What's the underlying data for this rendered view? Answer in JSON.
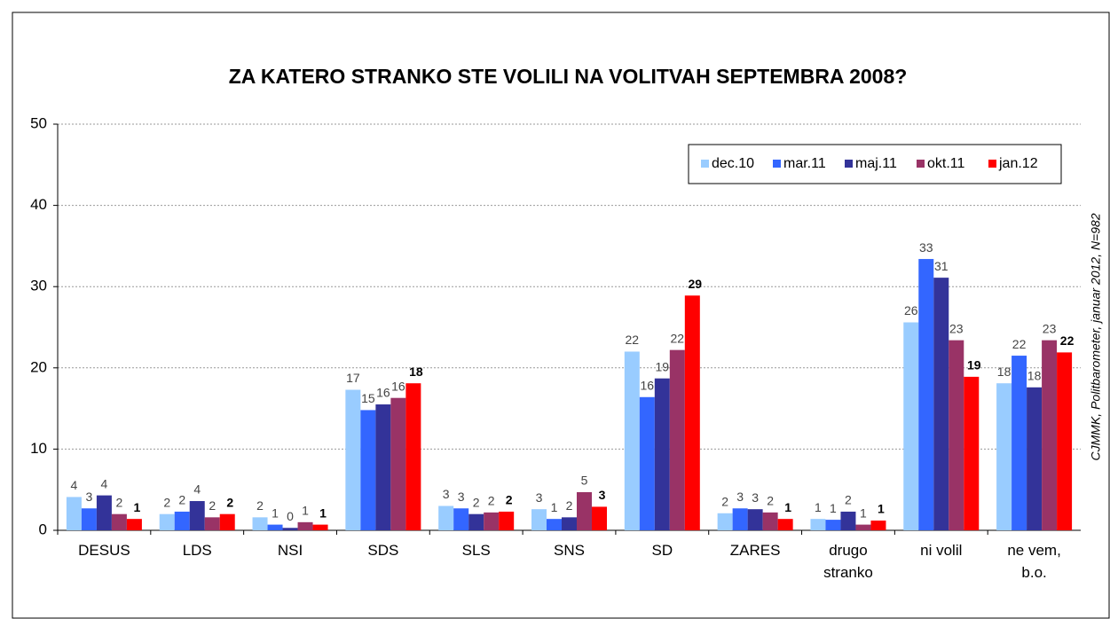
{
  "chart_data": {
    "type": "bar",
    "title": "ZA KATERO STRANKO STE VOLILI NA VOLITVAH SEPTEMBRA 2008?",
    "source": "CJMMK, Politbarometer, januar 2012, N=982",
    "categories": [
      "DESUS",
      "LDS",
      "NSI",
      "SDS",
      "SLS",
      "SNS",
      "SD",
      "ZARES",
      "drugo\nstranko",
      "ni volil",
      "ne vem,\nb.o."
    ],
    "ylim": [
      0,
      50
    ],
    "yticks": [
      0,
      10,
      20,
      30,
      40,
      50
    ],
    "grid": true,
    "legend": "top-right",
    "series": [
      {
        "name": "dec.10",
        "color": "#99ccff",
        "values": [
          4.1,
          2.0,
          1.6,
          17.3,
          3.0,
          2.6,
          22.0,
          2.1,
          1.4,
          25.6,
          18.1
        ],
        "value_labels": [
          "4",
          "2",
          "2",
          "17",
          "3",
          "3",
          "22",
          "2",
          "1",
          "26",
          "18"
        ]
      },
      {
        "name": "mar.11",
        "color": "#3366ff",
        "values": [
          2.7,
          2.3,
          0.7,
          14.8,
          2.7,
          1.4,
          16.4,
          2.7,
          1.3,
          33.4,
          21.5
        ],
        "value_labels": [
          "3",
          "2",
          "1",
          "15",
          "3",
          "1",
          "16",
          "3",
          "1",
          "33",
          "22"
        ]
      },
      {
        "name": "maj.11",
        "color": "#333399",
        "values": [
          4.3,
          3.6,
          0.3,
          15.5,
          2.0,
          1.6,
          18.7,
          2.6,
          2.3,
          31.1,
          17.6
        ],
        "value_labels": [
          "4",
          "4",
          "0",
          "16",
          "2",
          "2",
          "19",
          "3",
          "2",
          "31",
          "18"
        ]
      },
      {
        "name": "okt.11",
        "color": "#993366",
        "values": [
          2.0,
          1.6,
          1.0,
          16.3,
          2.2,
          4.7,
          22.2,
          2.2,
          0.7,
          23.4,
          23.4
        ],
        "value_labels": [
          "2",
          "2",
          "1",
          "16",
          "2",
          "5",
          "22",
          "2",
          "1",
          "23",
          "23"
        ]
      },
      {
        "name": "jan.12",
        "color": "#ff0000",
        "values": [
          1.4,
          2.0,
          0.7,
          18.1,
          2.3,
          2.9,
          28.9,
          1.4,
          1.2,
          18.9,
          21.9
        ],
        "value_labels": [
          "1",
          "2",
          "1",
          "18",
          "2",
          "3",
          "29",
          "1",
          "1",
          "19",
          "22"
        ]
      }
    ]
  }
}
